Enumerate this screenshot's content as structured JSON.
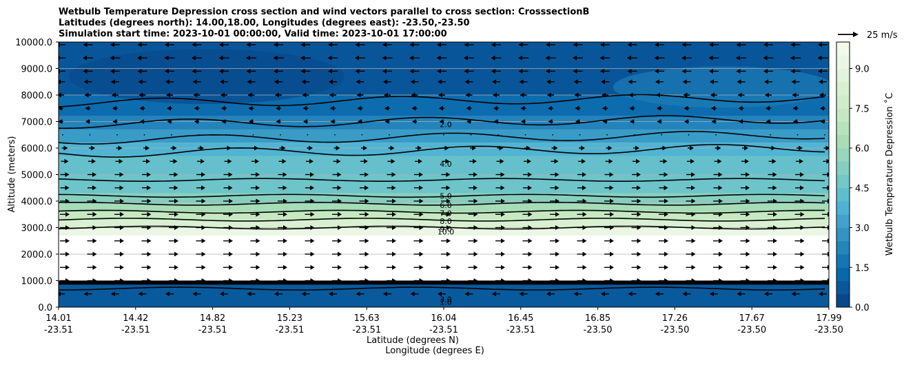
{
  "chart_data": {
    "type": "heatmap",
    "title_lines": [
      "Wetbulb Temperature Depression cross section and wind vectors parallel to cross section: CrosssectionB",
      "Latitudes (degrees north): 14.00,18.00, Longitudes (degrees east): -23.50,-23.50",
      "Simulation start time: 2023-10-01 00:00:00, Valid time: 2023-10-01 17:00:00"
    ],
    "ylabel": "Altitude (meters)",
    "xlabel_lines": [
      "Latitude (degrees N)",
      "Longitude (degrees E)"
    ],
    "ylim": [
      0,
      10000
    ],
    "y_ticks": [
      "0.0",
      "1000.0",
      "2000.0",
      "3000.0",
      "4000.0",
      "5000.0",
      "6000.0",
      "7000.0",
      "8000.0",
      "9000.0",
      "10000.0"
    ],
    "x_ticks": [
      {
        "lat": "14.01",
        "lon": "-23.51"
      },
      {
        "lat": "14.42",
        "lon": "-23.51"
      },
      {
        "lat": "14.82",
        "lon": "-23.51"
      },
      {
        "lat": "15.23",
        "lon": "-23.51"
      },
      {
        "lat": "15.63",
        "lon": "-23.51"
      },
      {
        "lat": "16.04",
        "lon": "-23.51"
      },
      {
        "lat": "16.45",
        "lon": "-23.51"
      },
      {
        "lat": "16.85",
        "lon": "-23.50"
      },
      {
        "lat": "17.26",
        "lon": "-23.50"
      },
      {
        "lat": "17.67",
        "lon": "-23.50"
      },
      {
        "lat": "17.99",
        "lon": "-23.50"
      }
    ],
    "colorbar": {
      "label": "Wetbulb Temperature Depression $^\\circ$C",
      "label_display": "Wetbulb Temperature Depression ˚C",
      "range": [
        0,
        10
      ],
      "ticks": [
        "0.0",
        "1.5",
        "3.0",
        "4.5",
        "6.0",
        "7.5",
        "9.0"
      ],
      "levels": 20,
      "colormap": "GnBu_r"
    },
    "wind_key": {
      "label": "25 m/s"
    },
    "contour_levels": [
      "1.0",
      "2.0",
      "3.0",
      "4.0",
      "5.0",
      "6.0",
      "7.0",
      "8.0",
      "9.0",
      "10.0"
    ],
    "profile_bands": [
      {
        "z_top": 900,
        "value": 0.8
      },
      {
        "z_top": 1000,
        "value": 10
      },
      {
        "z_top": 2700,
        "value": 10
      },
      {
        "z_top": 3000,
        "value": 9.3
      },
      {
        "z_top": 3300,
        "value": 8.3
      },
      {
        "z_top": 3600,
        "value": 7.3
      },
      {
        "z_top": 3900,
        "value": 6.2
      },
      {
        "z_top": 4300,
        "value": 5.3
      },
      {
        "z_top": 5000,
        "value": 4.6
      },
      {
        "z_top": 5700,
        "value": 4.4
      },
      {
        "z_top": 6200,
        "value": 3.8
      },
      {
        "z_top": 6700,
        "value": 3.0
      },
      {
        "z_top": 7200,
        "value": 2.2
      },
      {
        "z_top": 8000,
        "value": 1.4
      },
      {
        "z_top": 10000,
        "value": 0.7
      }
    ],
    "wind_rows": [
      {
        "z": 9900,
        "direction": "west",
        "length": 8
      },
      {
        "z": 9400,
        "direction": "west",
        "length": 9
      },
      {
        "z": 8900,
        "direction": "west",
        "length": 8
      },
      {
        "z": 8500,
        "direction": "west",
        "length": 6
      },
      {
        "z": 8000,
        "direction": "west",
        "length": 4
      },
      {
        "z": 7500,
        "direction": "west",
        "length": 2
      },
      {
        "z": 7000,
        "direction": "west",
        "length": 1
      },
      {
        "z": 6500,
        "direction": "calm",
        "length": 0
      },
      {
        "z": 6000,
        "direction": "east",
        "length": 3
      },
      {
        "z": 5500,
        "direction": "east",
        "length": 5
      },
      {
        "z": 5000,
        "direction": "east",
        "length": 7
      },
      {
        "z": 4500,
        "direction": "east",
        "length": 7
      },
      {
        "z": 4000,
        "direction": "east",
        "length": 8
      },
      {
        "z": 3500,
        "direction": "east",
        "length": 8
      },
      {
        "z": 3000,
        "direction": "east",
        "length": 8
      },
      {
        "z": 2500,
        "direction": "east",
        "length": 8
      },
      {
        "z": 2000,
        "direction": "east",
        "length": 8
      },
      {
        "z": 1500,
        "direction": "east",
        "length": 8
      },
      {
        "z": 1000,
        "direction": "east",
        "length": 8
      },
      {
        "z": 500,
        "direction": "west",
        "length": 6
      }
    ]
  }
}
